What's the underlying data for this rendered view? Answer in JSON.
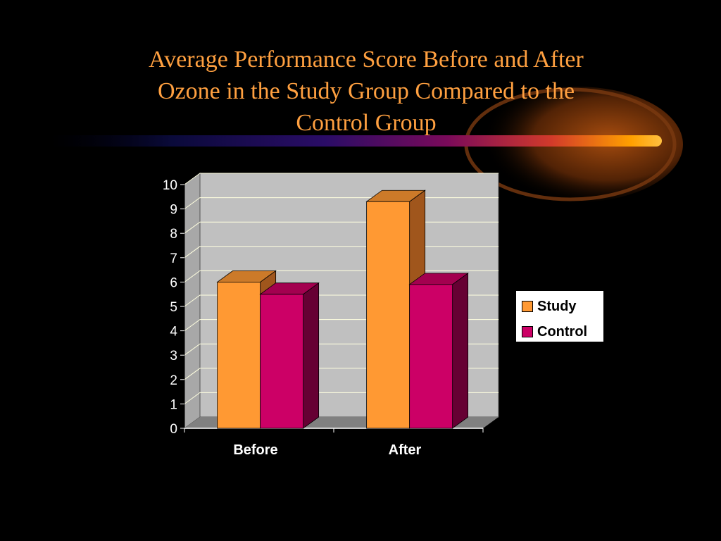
{
  "slide": {
    "title_lines": [
      "Average Performance Score Before and After",
      "Ozone in the Study Group Compared to the",
      "Control Group"
    ]
  },
  "colors": {
    "background": "#000000",
    "title": "#ffa040",
    "plot_back": "#c0c0c0",
    "floor": "#808080",
    "gridline": "#ffffe0"
  },
  "chart_data": {
    "type": "bar",
    "categories": [
      "Before",
      "After"
    ],
    "series": [
      {
        "name": "Study",
        "values": [
          6.0,
          9.3
        ],
        "color": "#ff9933",
        "side": "#a0561c",
        "top": "#cc7a29"
      },
      {
        "name": "Control",
        "values": [
          5.5,
          5.9
        ],
        "color": "#cc0066",
        "side": "#660033",
        "top": "#a3004f"
      }
    ],
    "yticks": [
      "0",
      "1",
      "2",
      "3",
      "4",
      "5",
      "6",
      "7",
      "8",
      "9",
      "10"
    ],
    "ylim": [
      0,
      10
    ],
    "grid": true,
    "legend_position": "right",
    "three_d": true
  }
}
